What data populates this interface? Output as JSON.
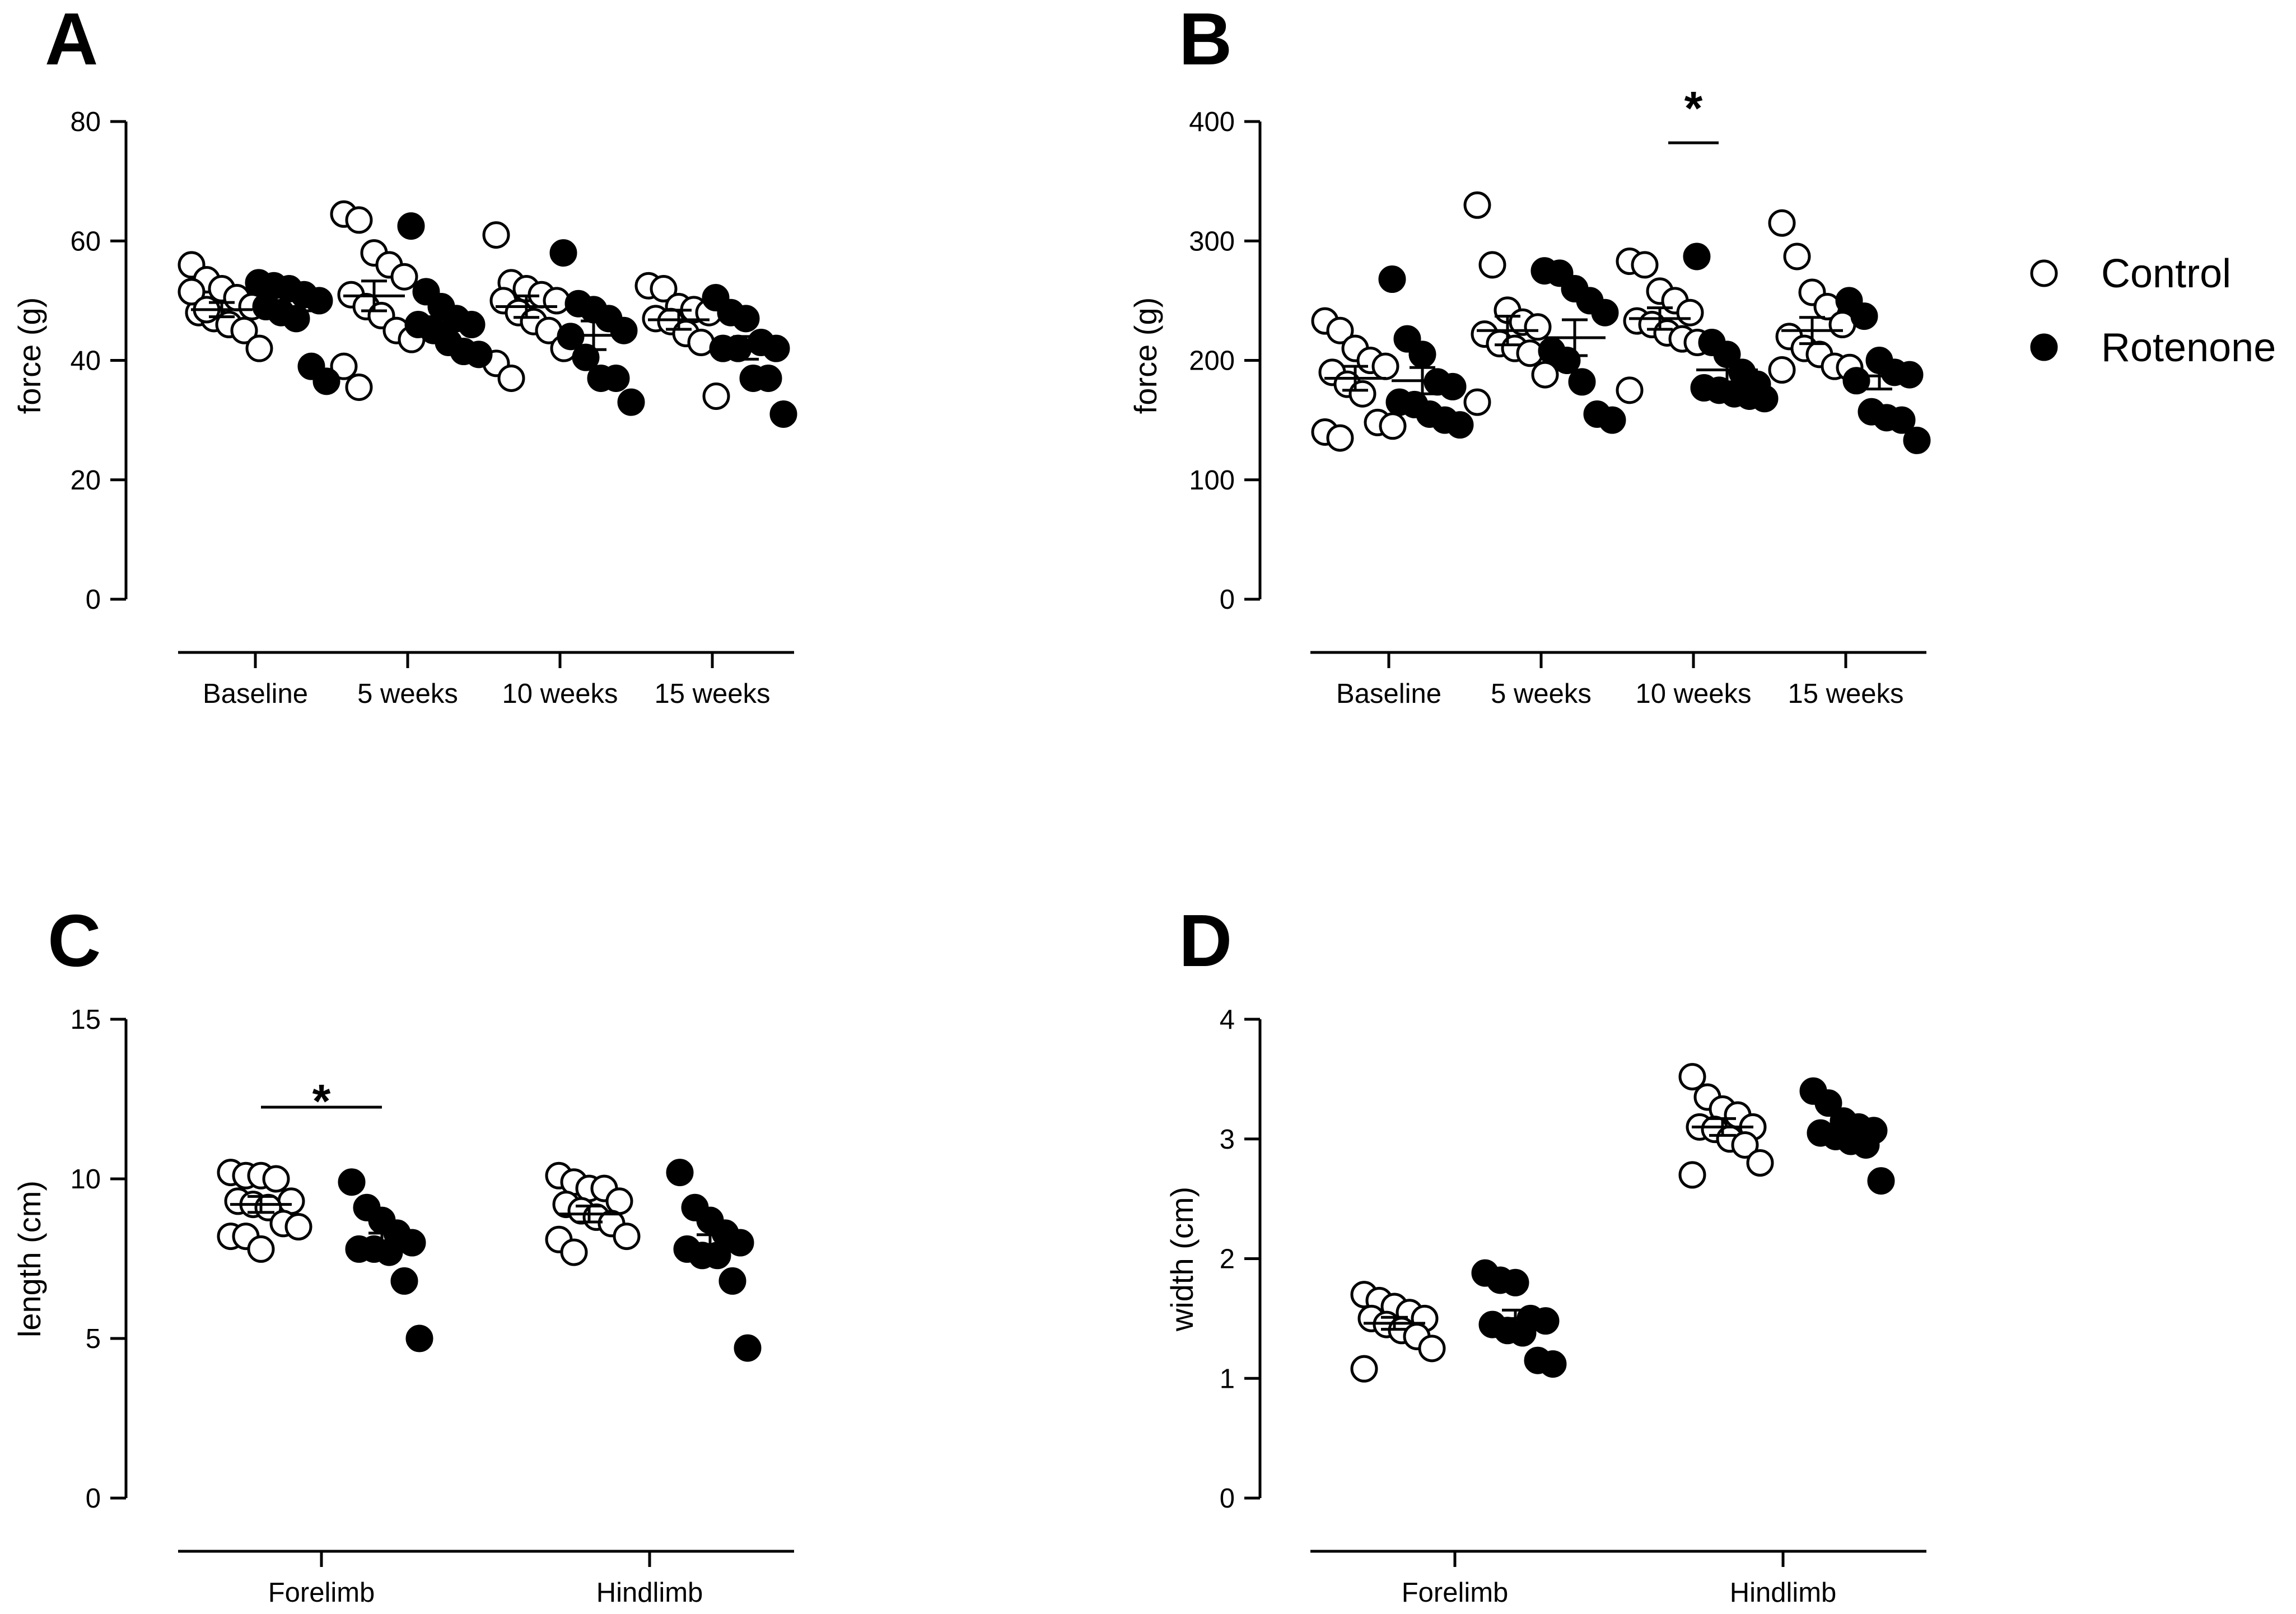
{
  "legend": {
    "items": [
      {
        "label": "Control",
        "marker": "open-circle"
      },
      {
        "label": "Rotenone",
        "marker": "filled-circle"
      }
    ]
  },
  "colors": {
    "ink": "#000000",
    "background": "#ffffff"
  },
  "chart_data": [
    {
      "panel": "A",
      "type": "scatter",
      "ylabel": "force (g)",
      "ylim": [
        0,
        80
      ],
      "yticks": [
        0,
        20,
        40,
        60,
        80
      ],
      "categories": [
        "Baseline",
        "5 weeks",
        "10 weeks",
        "15 weeks"
      ],
      "series": [
        {
          "name": "Control",
          "points": [
            [
              56.0,
              53.5,
              52.0,
              50.5,
              49.0,
              48.0,
              47.0,
              46.0,
              45.0,
              42.0,
              51.5,
              48.5
            ],
            [
              64.5,
              63.5,
              58.0,
              56.0,
              54.0,
              51.0,
              49.0,
              47.5,
              45.0,
              43.5,
              39.0,
              35.5
            ],
            [
              61.0,
              53.0,
              52.0,
              51.0,
              50.0,
              50.0,
              48.0,
              46.5,
              45.0,
              42.0,
              39.5,
              37.0
            ],
            [
              52.5,
              52.0,
              49.0,
              48.5,
              48.0,
              47.0,
              46.5,
              44.5,
              43.0,
              34.0
            ]
          ],
          "mean": [
            48.5,
            50.8,
            49.0,
            46.8
          ],
          "sem": [
            1.2,
            2.5,
            1.8,
            1.6
          ]
        },
        {
          "name": "Rotenone",
          "points": [
            [
              53.0,
              52.5,
              52.0,
              51.0,
              50.0,
              49.0,
              48.0,
              47.0,
              39.0,
              36.5
            ],
            [
              62.5,
              51.5,
              49.0,
              47.0,
              46.0,
              46.0,
              45.0,
              43.0,
              41.5,
              41.0
            ],
            [
              58.0,
              49.5,
              48.5,
              47.0,
              45.0,
              44.0,
              40.5,
              37.0,
              37.0,
              33.0
            ],
            [
              50.5,
              48.0,
              47.0,
              43.0,
              42.0,
              42.0,
              42.0,
              37.0,
              37.0,
              31.0
            ]
          ],
          "mean": [
            48.3,
            47.3,
            44.2,
            42.1
          ],
          "sem": [
            1.7,
            1.9,
            2.4,
            1.9
          ]
        }
      ],
      "annotations": []
    },
    {
      "panel": "B",
      "type": "scatter",
      "ylabel": "force (g)",
      "ylim": [
        0,
        400
      ],
      "yticks": [
        0,
        100,
        200,
        300,
        400
      ],
      "categories": [
        "Baseline",
        "5 weeks",
        "10 weeks",
        "15 weeks"
      ],
      "series": [
        {
          "name": "Control",
          "points": [
            [
              233,
              225,
              210,
              200,
              195,
              190,
              180,
              172,
              148,
              145,
              140,
              135
            ],
            [
              330,
              280,
              242,
              232,
              228,
              222,
              214,
              210,
              206,
              188,
              165
            ],
            [
              283,
              280,
              258,
              250,
              240,
              233,
              230,
              223,
              218,
              215,
              175
            ],
            [
              315,
              287,
              257,
              245,
              230,
              220,
              210,
              205,
              195,
              194,
              192
            ]
          ],
          "mean": [
            185,
            225,
            235,
            225
          ],
          "sem": [
            10,
            12,
            9,
            11
          ]
        },
        {
          "name": "Rotenone",
          "points": [
            [
              268,
              218,
              205,
              182,
              178,
              165,
              163,
              155,
              150,
              146
            ],
            [
              275,
              273,
              260,
              250,
              240,
              208,
              200,
              182,
              155,
              150
            ],
            [
              287,
              215,
              205,
              190,
              180,
              177,
              175,
              172,
              170,
              168
            ],
            [
              250,
              237,
              200,
              190,
              188,
              183,
              157,
              152,
              150,
              133
            ]
          ],
          "mean": [
            183,
            219,
            192,
            187
          ],
          "sem": [
            11,
            15,
            10,
            11
          ]
        }
      ],
      "annotations": [
        {
          "text": "*",
          "category": "10 weeks"
        }
      ]
    },
    {
      "panel": "C",
      "type": "scatter",
      "ylabel": "length (cm)",
      "ylim": [
        0,
        15
      ],
      "yticks": [
        0,
        5,
        10,
        15
      ],
      "categories": [
        "Forelimb",
        "Hindlimb"
      ],
      "series": [
        {
          "name": "Control",
          "points": [
            [
              10.2,
              10.1,
              10.1,
              10.0,
              9.3,
              9.3,
              9.2,
              9.1,
              8.6,
              8.5,
              8.2,
              8.2,
              7.8
            ],
            [
              10.1,
              9.9,
              9.7,
              9.7,
              9.3,
              9.2,
              9.0,
              8.8,
              8.6,
              8.2,
              8.1,
              7.7
            ]
          ],
          "mean": [
            9.2,
            8.9
          ],
          "sem": [
            0.25,
            0.25
          ]
        },
        {
          "name": "Rotenone",
          "points": [
            [
              9.9,
              9.1,
              8.7,
              8.3,
              8.0,
              7.8,
              7.8,
              7.7,
              6.8,
              5.0
            ],
            [
              10.2,
              9.1,
              8.7,
              8.3,
              8.0,
              7.8,
              7.6,
              7.6,
              6.8,
              4.7
            ]
          ],
          "mean": [
            7.9,
            7.8
          ],
          "sem": [
            0.4,
            0.45
          ]
        }
      ],
      "annotations": [
        {
          "text": "*",
          "category": "Forelimb"
        }
      ]
    },
    {
      "panel": "D",
      "type": "scatter",
      "ylabel": "width (cm)",
      "ylim": [
        0,
        4
      ],
      "yticks": [
        0,
        1,
        2,
        3,
        4
      ],
      "categories": [
        "Forelimb",
        "Hindlimb"
      ],
      "series": [
        {
          "name": "Control",
          "points": [
            [
              1.7,
              1.65,
              1.6,
              1.55,
              1.5,
              1.5,
              1.45,
              1.4,
              1.35,
              1.25,
              1.08
            ],
            [
              3.52,
              3.35,
              3.25,
              3.2,
              3.1,
              3.1,
              3.08,
              3.0,
              2.95,
              2.8,
              2.7
            ]
          ],
          "mean": [
            1.46,
            3.1
          ],
          "sem": [
            0.05,
            0.07
          ]
        },
        {
          "name": "Rotenone",
          "points": [
            [
              1.88,
              1.82,
              1.8,
              1.5,
              1.48,
              1.45,
              1.4,
              1.38,
              1.15,
              1.12
            ],
            [
              3.4,
              3.3,
              3.15,
              3.1,
              3.07,
              3.05,
              3.02,
              2.98,
              2.95,
              2.65
            ]
          ],
          "mean": [
            1.5,
            3.07
          ],
          "sem": [
            0.07,
            0.06
          ]
        }
      ],
      "annotations": []
    }
  ]
}
